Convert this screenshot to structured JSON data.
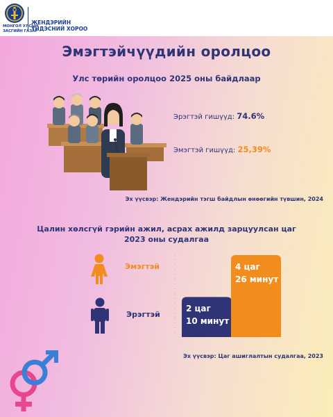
{
  "header": {
    "gov_name_line1": "МОНГОЛ УЛСЫН",
    "gov_name_line2": "ЗАСГИЙН ГАЗАР",
    "org_name_line1": "ЖЕНДЭРИЙН",
    "org_name_line2": "ҮНДЭСНИЙ ХОРОО",
    "emblem_icon": "soyombo-emblem-icon"
  },
  "title": "Эмэгтэйчүүдийн оролцоо",
  "parliament": {
    "subtitle": "Улс төрийн оролцоо  2025 оны байдлаар",
    "male_label": "Эрэгтэй гишүүд:",
    "male_value": "74.6%",
    "female_label": "Эмэгтэй гишүүд:",
    "female_value": "25,39%",
    "source": "Эх үүсвэр: Жендэрийн тэгш байдлын өнөөгийн түвшин, 2024",
    "illustration_icon": "parliament-illustration-icon"
  },
  "unpaid_work": {
    "subtitle_line1": "Цалин хөлсгүй гэрийн ажил, асрах ажилд зарцуулсан цаг",
    "subtitle_line2": "2023 оны судалгаа",
    "female_label": "Эмэгтэй",
    "male_label": "Эрэгтэй",
    "source": "Эх үүсвэр: Цаг ашиглалтын судалгаа, 2023",
    "female_icon": "woman-icon",
    "male_icon": "man-icon",
    "decor_icon": "gender-symbols-icon"
  },
  "chart_data": {
    "type": "bar",
    "categories": [
      "Эрэгтэй",
      "Эмэгтэй"
    ],
    "values_minutes": [
      130,
      266
    ],
    "labels": [
      {
        "line1": "2 цаг",
        "line2": "10 минут"
      },
      {
        "line1": "4 цаг",
        "line2": "26 минут"
      }
    ],
    "colors": [
      "#2e3475",
      "#f28c1c"
    ]
  }
}
